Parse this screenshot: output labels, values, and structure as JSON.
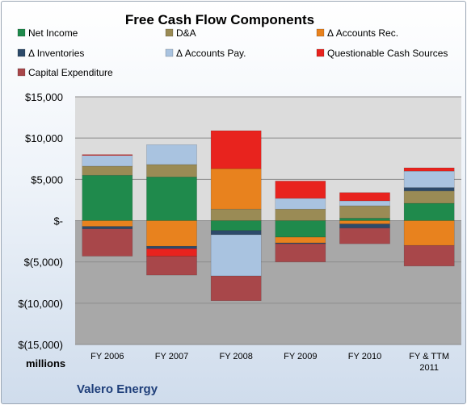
{
  "chart_data": {
    "type": "bar",
    "stacked": true,
    "title": "Free Cash Flow Components",
    "categories": [
      "FY 2006",
      "FY 2007",
      "FY 2008",
      "FY 2009",
      "FY 2010",
      "FY & TTM 2011"
    ],
    "ylabel": "millions",
    "ylim": [
      -15000,
      15000
    ],
    "yticks": [
      15000,
      10000,
      5000,
      0,
      -5000,
      -10000,
      -15000
    ],
    "ytick_labels": [
      "$15,000",
      "$10,000",
      "$5,000",
      "$-",
      "$(5,000)",
      "$(10,000)",
      "$(15,000)"
    ],
    "legend_position": "top",
    "grid": true,
    "series": [
      {
        "name": "Net Income",
        "color": "#1f8a4c",
        "values": [
          5500,
          5300,
          -1200,
          -2000,
          300,
          2100
        ]
      },
      {
        "name": "D&A",
        "color": "#9a8b55",
        "values": [
          1100,
          1500,
          1400,
          1400,
          1500,
          1500
        ]
      },
      {
        "name": "Δ Accounts Rec.",
        "color": "#e8821e",
        "values": [
          -700,
          -3100,
          4900,
          -700,
          -400,
          -3000
        ]
      },
      {
        "name": "Δ Inventories",
        "color": "#2d4a6a",
        "values": [
          -300,
          -300,
          -500,
          -100,
          -500,
          400
        ]
      },
      {
        "name": "Δ Accounts Pay.",
        "color": "#a9c3e0",
        "values": [
          1300,
          2400,
          -5000,
          1300,
          600,
          2000
        ]
      },
      {
        "name": "Questionable Cash Sources",
        "color": "#e8231e",
        "values": [
          100,
          -900,
          4600,
          2100,
          1000,
          400
        ]
      },
      {
        "name": "Capital Expenditure",
        "color": "#a8474a",
        "values": [
          -3300,
          -2300,
          -3000,
          -2200,
          -1900,
          -2500
        ]
      }
    ]
  },
  "company": "Valero Energy"
}
